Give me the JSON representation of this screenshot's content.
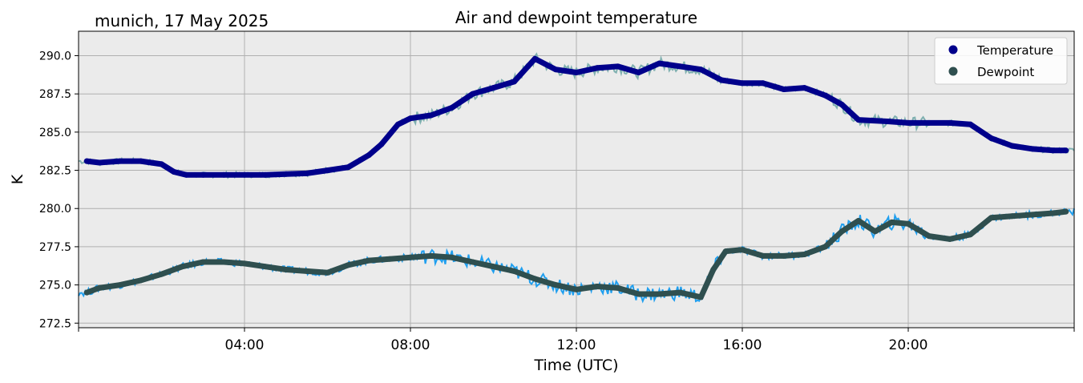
{
  "chart_data": {
    "type": "line",
    "title": "Air and dewpoint temperature",
    "subtitle": "munich, 17 May 2025",
    "xlabel": "Time (UTC)",
    "ylabel": "K",
    "xlim_hours": [
      0,
      24
    ],
    "ylim": [
      272.2,
      291.6
    ],
    "x_ticks": [
      4,
      8,
      12,
      16,
      20
    ],
    "x_tick_labels": [
      "04:00",
      "08:00",
      "12:00",
      "16:00",
      "20:00"
    ],
    "y_ticks": [
      272.5,
      275.0,
      277.5,
      280.0,
      282.5,
      285.0,
      287.5,
      290.0
    ],
    "y_tick_labels": [
      "272.5",
      "275.0",
      "277.5",
      "280.0",
      "282.5",
      "285.0",
      "287.5",
      "290.0"
    ],
    "grid": true,
    "legend_position": "top-right",
    "series": [
      {
        "name": "Temperature",
        "color": "#00008b",
        "raw_color": "#7fb0b0",
        "x": [
          0.2,
          0.5,
          1.0,
          1.5,
          2.0,
          2.3,
          2.6,
          3.0,
          3.5,
          4.0,
          4.5,
          5.0,
          5.5,
          6.0,
          6.5,
          7.0,
          7.3,
          7.7,
          8.0,
          8.5,
          9.0,
          9.5,
          10.0,
          10.5,
          11.0,
          11.5,
          12.0,
          12.5,
          13.0,
          13.5,
          14.0,
          14.5,
          15.0,
          15.5,
          16.0,
          16.5,
          17.0,
          17.5,
          18.0,
          18.4,
          18.8,
          19.5,
          20.0,
          20.5,
          21.0,
          21.5,
          22.0,
          22.5,
          23.0,
          23.5,
          23.8
        ],
        "values": [
          283.1,
          283.0,
          283.1,
          283.1,
          282.9,
          282.4,
          282.2,
          282.2,
          282.2,
          282.2,
          282.2,
          282.25,
          282.3,
          282.5,
          282.7,
          283.5,
          284.2,
          285.5,
          285.9,
          286.1,
          286.6,
          287.5,
          287.9,
          288.3,
          289.8,
          289.1,
          288.9,
          289.2,
          289.3,
          288.9,
          289.5,
          289.3,
          289.1,
          288.4,
          288.2,
          288.2,
          287.8,
          287.9,
          287.4,
          286.8,
          285.8,
          285.7,
          285.6,
          285.6,
          285.6,
          285.5,
          284.6,
          284.1,
          283.9,
          283.8,
          283.8
        ]
      },
      {
        "name": "Dewpoint",
        "color": "#2f4f4f",
        "raw_color": "#1f9fef",
        "x": [
          0.2,
          0.5,
          1.0,
          1.5,
          2.0,
          2.5,
          3.0,
          3.5,
          4.0,
          4.5,
          5.0,
          5.5,
          6.0,
          6.5,
          7.0,
          7.5,
          8.0,
          8.5,
          9.0,
          9.5,
          10.0,
          10.5,
          11.0,
          11.5,
          12.0,
          12.5,
          13.0,
          13.5,
          14.0,
          14.5,
          15.0,
          15.3,
          15.6,
          16.0,
          16.5,
          17.0,
          17.5,
          18.0,
          18.4,
          18.8,
          19.2,
          19.6,
          20.0,
          20.5,
          21.0,
          21.5,
          22.0,
          22.5,
          23.0,
          23.5,
          23.8
        ],
        "values": [
          274.5,
          274.8,
          275.0,
          275.3,
          275.7,
          276.2,
          276.5,
          276.5,
          276.4,
          276.2,
          276.0,
          275.9,
          275.8,
          276.3,
          276.6,
          276.7,
          276.8,
          276.9,
          276.8,
          276.5,
          276.2,
          275.9,
          275.4,
          275.0,
          274.7,
          274.9,
          274.8,
          274.4,
          274.4,
          274.5,
          274.2,
          276.0,
          277.2,
          277.3,
          276.9,
          276.9,
          277.0,
          277.5,
          278.5,
          279.2,
          278.5,
          279.1,
          279.0,
          278.2,
          278.0,
          278.3,
          279.4,
          279.5,
          279.6,
          279.7,
          279.8
        ]
      }
    ]
  }
}
